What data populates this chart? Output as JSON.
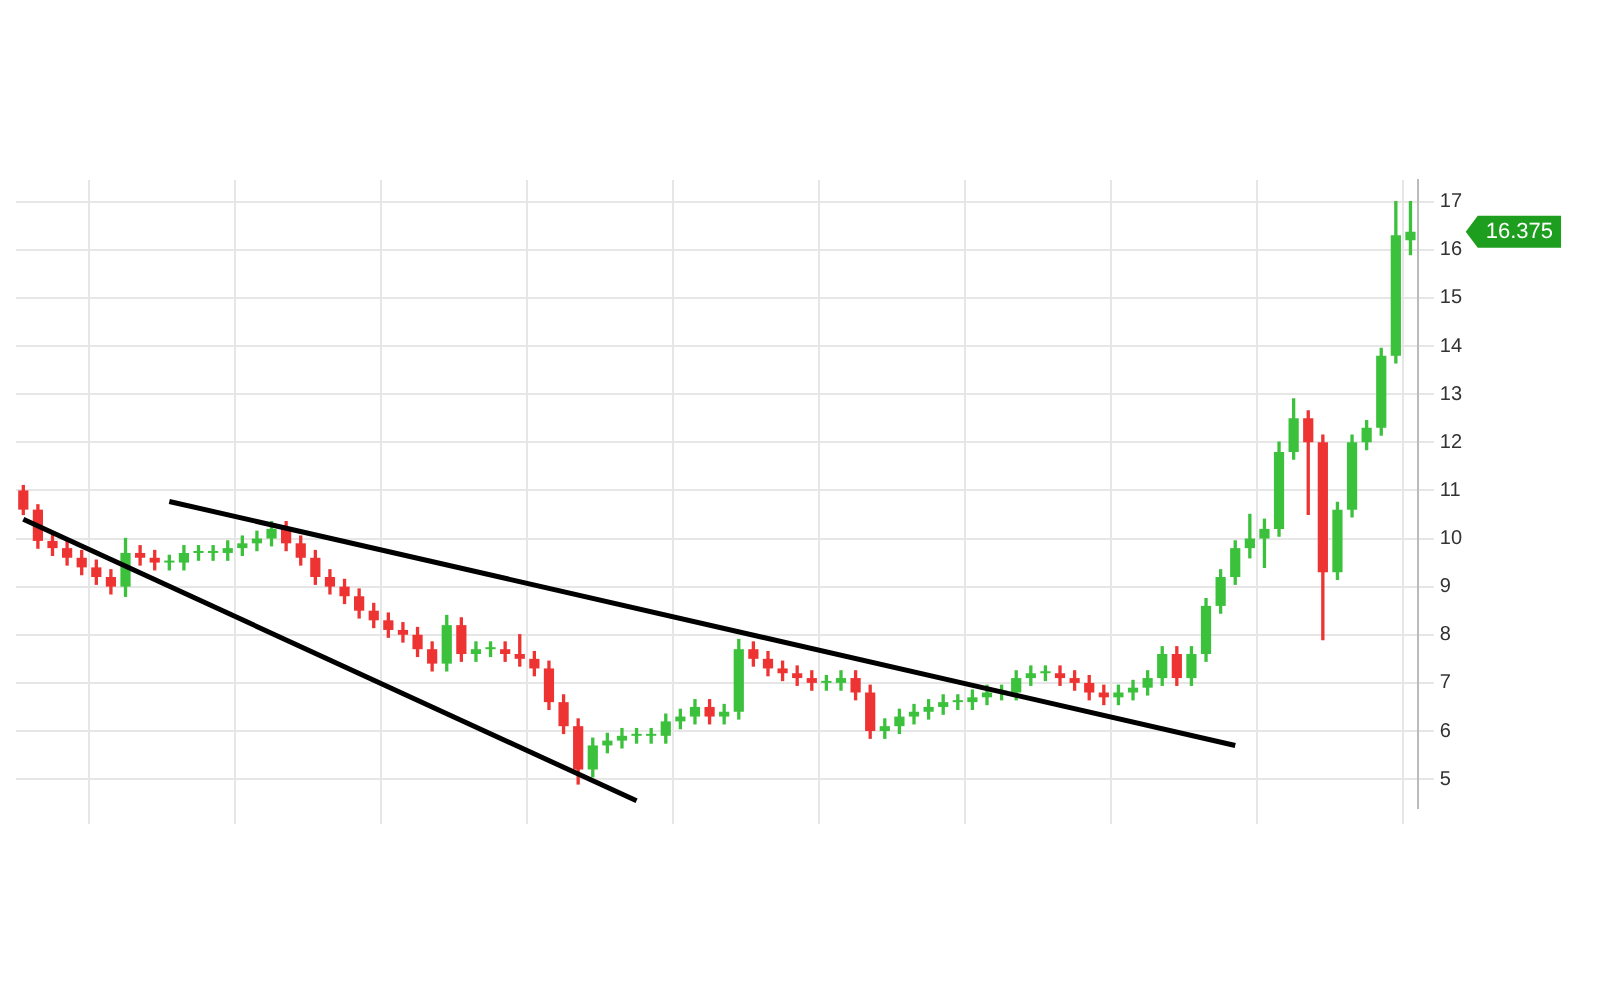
{
  "chart_data": {
    "type": "candlestick",
    "categories": [
      null,
      null,
      null,
      null,
      null,
      null,
      null,
      null,
      null,
      null,
      null,
      null,
      null,
      null,
      null,
      null,
      null,
      null,
      null,
      null,
      null,
      null,
      null,
      null,
      null,
      null,
      null,
      null,
      null,
      null,
      null,
      null,
      null,
      null,
      null,
      null,
      null,
      null,
      null,
      null,
      null,
      null,
      null,
      null,
      null,
      null,
      null,
      null,
      null,
      null,
      null,
      null,
      null,
      null,
      null,
      null,
      null,
      null,
      null,
      null,
      null,
      null,
      null,
      null,
      null,
      null,
      null,
      null,
      null,
      null,
      null,
      null,
      null,
      null,
      null,
      null,
      null,
      null,
      null,
      null,
      null,
      null,
      null,
      null,
      null,
      null,
      null,
      null,
      null,
      null,
      null,
      null,
      null,
      null,
      null,
      null
    ],
    "ohlc": [
      [
        11.0,
        11.1,
        10.5,
        10.6
      ],
      [
        10.6,
        10.7,
        9.8,
        9.95
      ],
      [
        9.95,
        10.1,
        9.65,
        9.8
      ],
      [
        9.8,
        9.95,
        9.45,
        9.6
      ],
      [
        9.6,
        9.75,
        9.25,
        9.4
      ],
      [
        9.4,
        9.55,
        9.05,
        9.2
      ],
      [
        9.2,
        9.35,
        8.85,
        9.0
      ],
      [
        9.0,
        10.0,
        8.8,
        9.7
      ],
      [
        9.7,
        9.85,
        9.45,
        9.6
      ],
      [
        9.6,
        9.75,
        9.35,
        9.5
      ],
      [
        9.5,
        9.65,
        9.35,
        9.5
      ],
      [
        9.5,
        9.85,
        9.35,
        9.7
      ],
      [
        9.7,
        9.85,
        9.55,
        9.7
      ],
      [
        9.7,
        9.85,
        9.55,
        9.7
      ],
      [
        9.7,
        9.95,
        9.55,
        9.8
      ],
      [
        9.8,
        10.05,
        9.65,
        9.9
      ],
      [
        9.9,
        10.15,
        9.75,
        10.0
      ],
      [
        10.0,
        10.35,
        9.85,
        10.2
      ],
      [
        10.2,
        10.35,
        9.75,
        9.9
      ],
      [
        9.9,
        10.05,
        9.45,
        9.6
      ],
      [
        9.6,
        9.75,
        9.05,
        9.2
      ],
      [
        9.2,
        9.35,
        8.85,
        9.0
      ],
      [
        9.0,
        9.15,
        8.65,
        8.8
      ],
      [
        8.8,
        8.95,
        8.35,
        8.5
      ],
      [
        8.5,
        8.65,
        8.15,
        8.3
      ],
      [
        8.3,
        8.45,
        7.95,
        8.1
      ],
      [
        8.1,
        8.25,
        7.85,
        8.0
      ],
      [
        8.0,
        8.15,
        7.55,
        7.7
      ],
      [
        7.7,
        7.85,
        7.25,
        7.4
      ],
      [
        7.4,
        8.4,
        7.25,
        8.2
      ],
      [
        8.2,
        8.35,
        7.45,
        7.6
      ],
      [
        7.6,
        7.85,
        7.45,
        7.7
      ],
      [
        7.7,
        7.85,
        7.55,
        7.7
      ],
      [
        7.7,
        7.85,
        7.45,
        7.6
      ],
      [
        7.6,
        8.0,
        7.35,
        7.5
      ],
      [
        7.5,
        7.65,
        7.15,
        7.3
      ],
      [
        7.3,
        7.45,
        6.45,
        6.6
      ],
      [
        6.6,
        6.75,
        5.95,
        6.1
      ],
      [
        6.1,
        6.25,
        4.9,
        5.2
      ],
      [
        5.2,
        5.85,
        5.05,
        5.7
      ],
      [
        5.7,
        5.95,
        5.55,
        5.8
      ],
      [
        5.8,
        6.05,
        5.65,
        5.9
      ],
      [
        5.9,
        6.05,
        5.75,
        5.9
      ],
      [
        5.9,
        6.05,
        5.75,
        5.9
      ],
      [
        5.9,
        6.35,
        5.75,
        6.2
      ],
      [
        6.2,
        6.45,
        6.05,
        6.3
      ],
      [
        6.3,
        6.65,
        6.15,
        6.5
      ],
      [
        6.5,
        6.65,
        6.15,
        6.3
      ],
      [
        6.3,
        6.55,
        6.15,
        6.4
      ],
      [
        6.4,
        7.9,
        6.25,
        7.7
      ],
      [
        7.7,
        7.85,
        7.35,
        7.5
      ],
      [
        7.5,
        7.65,
        7.15,
        7.3
      ],
      [
        7.3,
        7.45,
        7.05,
        7.2
      ],
      [
        7.2,
        7.35,
        6.95,
        7.1
      ],
      [
        7.1,
        7.25,
        6.85,
        7.0
      ],
      [
        7.0,
        7.15,
        6.85,
        7.0
      ],
      [
        7.0,
        7.25,
        6.85,
        7.1
      ],
      [
        7.1,
        7.25,
        6.65,
        6.8
      ],
      [
        6.8,
        6.95,
        5.85,
        6.0
      ],
      [
        6.0,
        6.25,
        5.85,
        6.1
      ],
      [
        6.1,
        6.45,
        5.95,
        6.3
      ],
      [
        6.3,
        6.55,
        6.15,
        6.4
      ],
      [
        6.4,
        6.65,
        6.25,
        6.5
      ],
      [
        6.5,
        6.75,
        6.35,
        6.6
      ],
      [
        6.6,
        6.75,
        6.45,
        6.6
      ],
      [
        6.6,
        6.85,
        6.45,
        6.7
      ],
      [
        6.7,
        6.95,
        6.55,
        6.8
      ],
      [
        6.8,
        6.95,
        6.65,
        6.8
      ],
      [
        6.8,
        7.25,
        6.65,
        7.1
      ],
      [
        7.1,
        7.35,
        6.95,
        7.2
      ],
      [
        7.2,
        7.35,
        7.05,
        7.2
      ],
      [
        7.2,
        7.35,
        6.95,
        7.1
      ],
      [
        7.1,
        7.25,
        6.85,
        7.0
      ],
      [
        7.0,
        7.15,
        6.65,
        6.8
      ],
      [
        6.8,
        6.95,
        6.55,
        6.7
      ],
      [
        6.7,
        6.95,
        6.55,
        6.8
      ],
      [
        6.8,
        7.05,
        6.65,
        6.9
      ],
      [
        6.9,
        7.25,
        6.75,
        7.1
      ],
      [
        7.1,
        7.75,
        6.95,
        7.6
      ],
      [
        7.6,
        7.75,
        6.95,
        7.1
      ],
      [
        7.1,
        7.75,
        6.95,
        7.6
      ],
      [
        7.6,
        8.75,
        7.45,
        8.6
      ],
      [
        8.6,
        9.35,
        8.45,
        9.2
      ],
      [
        9.2,
        9.95,
        9.05,
        9.8
      ],
      [
        9.8,
        10.5,
        9.6,
        10.0
      ],
      [
        10.0,
        10.4,
        9.4,
        10.2
      ],
      [
        10.2,
        12.0,
        10.05,
        11.8
      ],
      [
        11.8,
        12.9,
        11.65,
        12.5
      ],
      [
        12.5,
        12.65,
        10.5,
        12.0
      ],
      [
        12.0,
        12.15,
        7.9,
        9.3
      ],
      [
        9.3,
        10.75,
        9.15,
        10.6
      ],
      [
        10.6,
        12.15,
        10.45,
        12.0
      ],
      [
        12.0,
        12.45,
        11.85,
        12.3
      ],
      [
        12.3,
        13.95,
        12.15,
        13.8
      ],
      [
        13.8,
        17.0,
        13.65,
        16.3
      ],
      [
        16.2,
        17.0,
        15.9,
        16.375
      ]
    ],
    "series": [
      {
        "type": "line",
        "color": "#000000",
        "values": [
          null,
          null,
          null,
          null,
          null,
          null,
          null,
          null,
          null,
          null,
          10.77,
          null,
          null,
          null,
          null,
          null,
          null,
          null,
          null,
          null,
          null,
          null,
          null,
          null,
          null,
          null,
          null,
          null,
          null,
          null,
          null,
          null,
          null,
          null,
          null,
          null,
          null,
          null,
          null,
          null,
          null,
          null,
          null,
          null,
          null,
          null,
          null,
          null,
          null,
          null,
          null,
          null,
          null,
          null,
          null,
          null,
          null,
          null,
          null,
          null,
          null,
          null,
          null,
          null,
          null,
          null,
          null,
          null,
          null,
          null,
          null,
          null,
          null,
          null,
          null,
          null,
          null,
          null,
          null,
          null,
          null,
          null,
          null,
          5.7,
          null,
          null,
          null,
          null,
          null,
          null,
          null,
          null,
          null,
          null,
          null,
          null
        ]
      },
      {
        "type": "line",
        "color": "#000000",
        "values": [
          10.4,
          null,
          null,
          null,
          null,
          null,
          null,
          null,
          null,
          null,
          null,
          null,
          null,
          null,
          null,
          null,
          null,
          null,
          null,
          null,
          null,
          null,
          null,
          null,
          null,
          null,
          null,
          null,
          null,
          null,
          null,
          null,
          null,
          null,
          null,
          null,
          null,
          null,
          null,
          null,
          null,
          null,
          4.55,
          null,
          null,
          null,
          null,
          null,
          null,
          null,
          null,
          null,
          null,
          null,
          null,
          null,
          null,
          null,
          null,
          null,
          null,
          null,
          null,
          null,
          null,
          null,
          null,
          null,
          null,
          null,
          null,
          null,
          null,
          null,
          null,
          null,
          null,
          null,
          null,
          null,
          null,
          null,
          null,
          null,
          null,
          null,
          null,
          null,
          null,
          null,
          null,
          null,
          null,
          null,
          null,
          null
        ]
      }
    ],
    "ylim": [
      4.4,
      17.45
    ],
    "yticks": [
      5,
      6,
      7,
      8,
      9,
      10,
      11,
      12,
      13,
      14,
      15,
      16,
      17
    ],
    "grid": true,
    "annotations": [
      "16.375"
    ]
  }
}
